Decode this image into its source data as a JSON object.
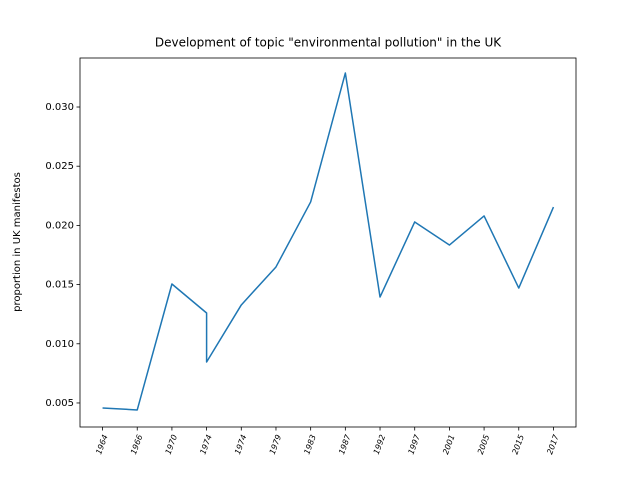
{
  "chart_data": {
    "type": "line",
    "title": "Development of topic \"environmental pollution\" in the UK",
    "y_label": "proportion in UK manifestos",
    "x": [
      0,
      1,
      2,
      3,
      3,
      4,
      5,
      6,
      7,
      8,
      9,
      10,
      11,
      12,
      13
    ],
    "series": [
      {
        "name": "environmental pollution",
        "color": "#1f77b4",
        "values": [
          0.00458,
          0.00441,
          0.01505,
          0.0126,
          0.00846,
          0.01328,
          0.01649,
          0.02198,
          0.03287,
          0.01395,
          0.02029,
          0.01834,
          0.0208,
          0.01471,
          0.02155
        ]
      }
    ],
    "xlim": [
      -0.65,
      13.65
    ],
    "xticks": [
      {
        "value": 0,
        "label": "1964"
      },
      {
        "value": 1,
        "label": "1966"
      },
      {
        "value": 2,
        "label": "1970"
      },
      {
        "value": 3,
        "label": "1974"
      },
      {
        "value": 4,
        "label": "1974"
      },
      {
        "value": 5,
        "label": "1979"
      },
      {
        "value": 6,
        "label": "1983"
      },
      {
        "value": 7,
        "label": "1987"
      },
      {
        "value": 8,
        "label": "1992"
      },
      {
        "value": 9,
        "label": "1997"
      },
      {
        "value": 10,
        "label": "2001"
      },
      {
        "value": 11,
        "label": "2005"
      },
      {
        "value": 12,
        "label": "2015"
      },
      {
        "value": 13,
        "label": "2017"
      }
    ],
    "ylim": [
      0.00297,
      0.03414
    ],
    "yticks": [
      0.005,
      {
        "value": 0.01,
        "label": "0.010"
      },
      0.015,
      {
        "value": 0.02,
        "label": "0.020"
      },
      0.025,
      {
        "value": 0.03,
        "label": "0.030"
      }
    ],
    "grid": false
  }
}
